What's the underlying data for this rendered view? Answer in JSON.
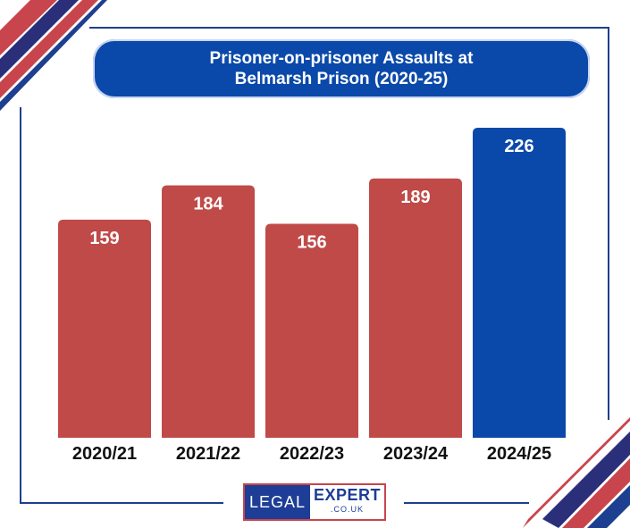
{
  "title_line1": "Prisoner-on-prisoner Assaults at",
  "title_line2": "Belmarsh Prison (2020-25)",
  "logo": {
    "left": "LEGAL",
    "right": "EXPERT",
    "sub": ".CO.UK"
  },
  "colors": {
    "bar_default": "#c04a48",
    "bar_highlight": "#0a49aa",
    "navy": "#1d3f8f",
    "red": "#c8454d"
  },
  "chart_data": {
    "type": "bar",
    "title": "Prisoner-on-prisoner Assaults at Belmarsh Prison (2020-25)",
    "categories": [
      "2020/21",
      "2021/22",
      "2022/23",
      "2023/24",
      "2024/25"
    ],
    "values": [
      159,
      184,
      156,
      189,
      226
    ],
    "highlight_index": 4,
    "ylim": [
      0,
      240
    ],
    "grid": false,
    "legend": "none"
  }
}
